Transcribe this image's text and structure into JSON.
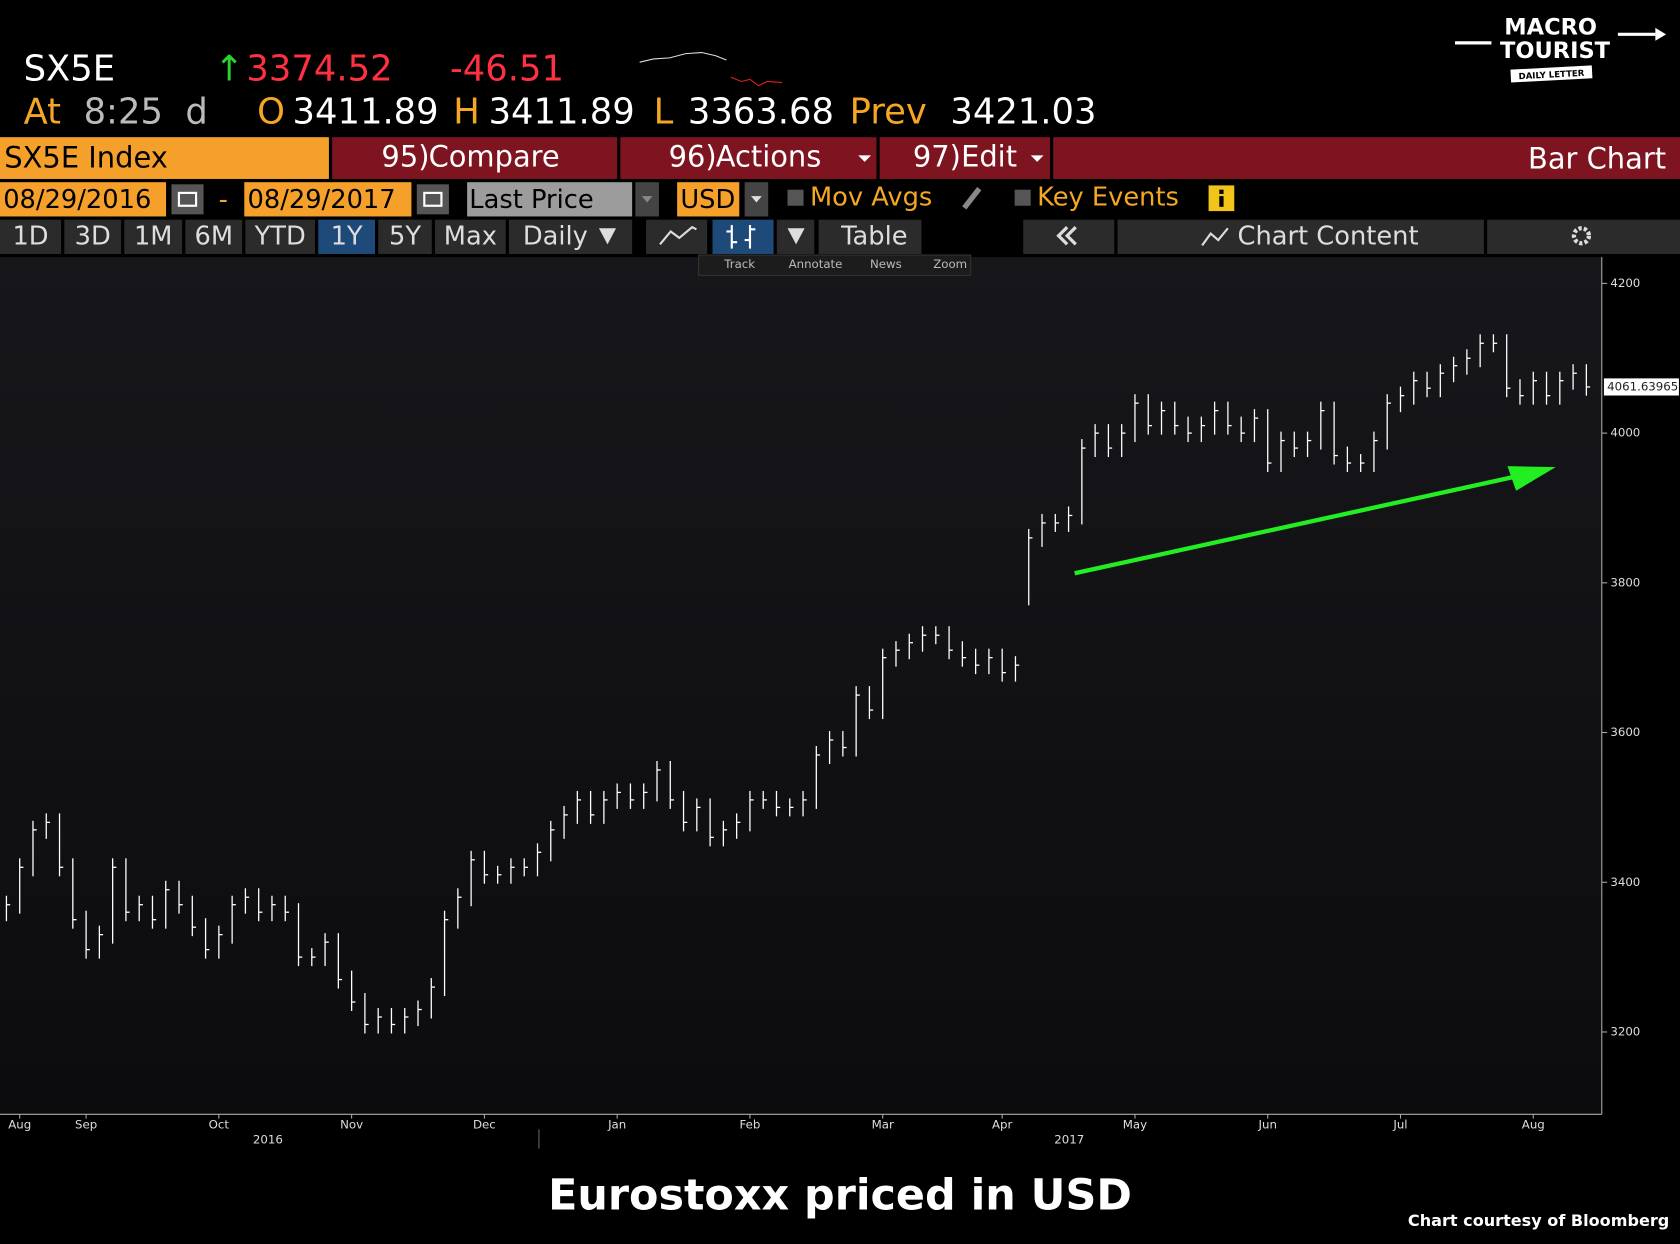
{
  "header": {
    "ticker": "SX5E",
    "arrow": "↑",
    "last": 3374.52,
    "change": -46.51,
    "time_label": "At",
    "time": "8:25",
    "time_suffix": "d",
    "open_label": "O",
    "open": 3411.89,
    "high_label": "H",
    "high": 3411.89,
    "low_label": "L",
    "low": 3363.68,
    "prev_label": "Prev",
    "prev": 3421.03
  },
  "logo": {
    "line1": "MACRO",
    "line2": "TOURIST",
    "ribbon": "DAILY LETTER"
  },
  "toolbar": {
    "security": "SX5E Index",
    "compare_num": "95)",
    "compare": "Compare",
    "actions_num": "96)",
    "actions": "Actions",
    "edit_num": "97)",
    "edit": "Edit",
    "chart_kind": "Bar Chart"
  },
  "settings": {
    "start_date": "08/29/2016",
    "dash": "-",
    "end_date": "08/29/2017",
    "field": "Last Price",
    "currency": "USD",
    "mov_avgs": "Mov Avgs",
    "key_events": "Key Events"
  },
  "periods": [
    "1D",
    "3D",
    "1M",
    "6M",
    "YTD",
    "1Y",
    "5Y",
    "Max"
  ],
  "periodicity": "Daily",
  "table": "Table",
  "chart_content": "Chart Content",
  "tools": [
    "Track",
    "Annotate",
    "News",
    "Zoom"
  ],
  "caption": "Eurostoxx priced in USD",
  "credit": "Chart courtesy of Bloomberg",
  "chart_data": {
    "type": "hlc",
    "color": "#ffffff",
    "categories": [
      null,
      "Aug",
      null,
      null,
      null,
      null,
      "Sep",
      null,
      null,
      null,
      null,
      null,
      null,
      null,
      null,
      null,
      "Oct",
      null,
      null,
      null,
      null,
      null,
      null,
      null,
      null,
      null,
      "Nov",
      null,
      null,
      null,
      null,
      null,
      null,
      null,
      null,
      null,
      "Dec",
      null,
      null,
      null,
      null,
      null,
      null,
      null,
      null,
      null,
      "Jan",
      null,
      null,
      null,
      null,
      null,
      null,
      null,
      null,
      null,
      "Feb",
      null,
      null,
      null,
      null,
      null,
      null,
      null,
      null,
      null,
      "Mar",
      null,
      null,
      null,
      null,
      null,
      null,
      null,
      null,
      "Apr",
      null,
      null,
      null,
      null,
      null,
      null,
      null,
      null,
      null,
      "May",
      null,
      null,
      null,
      null,
      null,
      null,
      null,
      null,
      null,
      "Jun",
      null,
      null,
      null,
      null,
      null,
      null,
      null,
      null,
      null,
      "Jul",
      null,
      null,
      null,
      null,
      null,
      null,
      null,
      null,
      null,
      "Aug",
      null,
      null,
      null,
      null
    ],
    "x_year_labels": [
      "2016",
      "2017"
    ],
    "high": [
      3382,
      3432,
      3482,
      3492,
      3492,
      3432,
      3362,
      3342,
      3432,
      3432,
      3382,
      3382,
      3402,
      3402,
      3382,
      3352,
      3342,
      3382,
      3392,
      3392,
      3382,
      3382,
      3372,
      3312,
      3332,
      3332,
      3282,
      3252,
      3232,
      3232,
      3232,
      3242,
      3272,
      3362,
      3392,
      3442,
      3442,
      3422,
      3432,
      3432,
      3452,
      3482,
      3502,
      3522,
      3522,
      3522,
      3532,
      3532,
      3532,
      3562,
      3562,
      3522,
      3512,
      3512,
      3482,
      3492,
      3522,
      3522,
      3522,
      3512,
      3522,
      3582,
      3602,
      3602,
      3662,
      3662,
      3712,
      3722,
      3732,
      3742,
      3742,
      3742,
      3722,
      3712,
      3712,
      3712,
      3702,
      3872,
      3892,
      3892,
      3902,
      3992,
      4012,
      4012,
      4012,
      4052,
      4052,
      4042,
      4042,
      4022,
      4022,
      4042,
      4042,
      4022,
      4032,
      4032,
      4002,
      4002,
      4002,
      4042,
      4042,
      3982,
      3972,
      4002,
      4052,
      4062,
      4082,
      4082,
      4092,
      4102,
      4112,
      4132,
      4132,
      4132,
      4072,
      4082,
      4082,
      4082,
      4092,
      4092
    ],
    "low": [
      3348,
      3358,
      3408,
      3458,
      3408,
      3338,
      3298,
      3298,
      3318,
      3348,
      3348,
      3338,
      3338,
      3358,
      3328,
      3298,
      3298,
      3318,
      3358,
      3348,
      3348,
      3348,
      3288,
      3288,
      3288,
      3258,
      3228,
      3198,
      3198,
      3198,
      3198,
      3208,
      3218,
      3248,
      3338,
      3368,
      3398,
      3398,
      3398,
      3408,
      3408,
      3428,
      3458,
      3478,
      3478,
      3478,
      3498,
      3498,
      3498,
      3508,
      3498,
      3468,
      3468,
      3448,
      3448,
      3458,
      3468,
      3498,
      3488,
      3488,
      3488,
      3498,
      3558,
      3568,
      3568,
      3618,
      3618,
      3688,
      3698,
      3708,
      3718,
      3698,
      3688,
      3678,
      3678,
      3668,
      3668,
      3770,
      3848,
      3868,
      3868,
      3878,
      3968,
      3968,
      3968,
      3988,
      3998,
      3998,
      3998,
      3988,
      3988,
      3998,
      3998,
      3988,
      3988,
      3948,
      3948,
      3968,
      3968,
      3978,
      3958,
      3948,
      3948,
      3948,
      3978,
      4028,
      4038,
      4048,
      4048,
      4068,
      4078,
      4088,
      4108,
      4048,
      4038,
      4038,
      4038,
      4038,
      4058,
      4050
    ],
    "close": [
      3370,
      3420,
      3470,
      3480,
      3420,
      3350,
      3310,
      3330,
      3420,
      3360,
      3370,
      3350,
      3390,
      3370,
      3340,
      3310,
      3330,
      3370,
      3380,
      3360,
      3370,
      3360,
      3300,
      3300,
      3320,
      3270,
      3240,
      3210,
      3220,
      3210,
      3220,
      3230,
      3260,
      3350,
      3380,
      3430,
      3410,
      3410,
      3420,
      3420,
      3440,
      3470,
      3490,
      3510,
      3490,
      3510,
      3520,
      3510,
      3520,
      3550,
      3510,
      3480,
      3500,
      3460,
      3470,
      3480,
      3510,
      3510,
      3500,
      3500,
      3510,
      3570,
      3590,
      3580,
      3650,
      3630,
      3700,
      3710,
      3720,
      3730,
      3730,
      3710,
      3700,
      3690,
      3700,
      3680,
      3690,
      3860,
      3880,
      3880,
      3890,
      3980,
      4000,
      3980,
      4000,
      4040,
      4010,
      4030,
      4010,
      4000,
      4010,
      4030,
      4010,
      4000,
      4020,
      3960,
      3990,
      3980,
      3990,
      4030,
      3970,
      3960,
      3960,
      3990,
      4040,
      4050,
      4070,
      4060,
      4080,
      4090,
      4100,
      4120,
      4120,
      4060,
      4050,
      4070,
      4050,
      4070,
      4080,
      4061.63965
    ],
    "last_value": 4061.63965,
    "ylim": [
      3090,
      4235
    ],
    "yticks": [
      3200,
      3400,
      3600,
      3800,
      4000,
      4200
    ],
    "grid": false
  }
}
